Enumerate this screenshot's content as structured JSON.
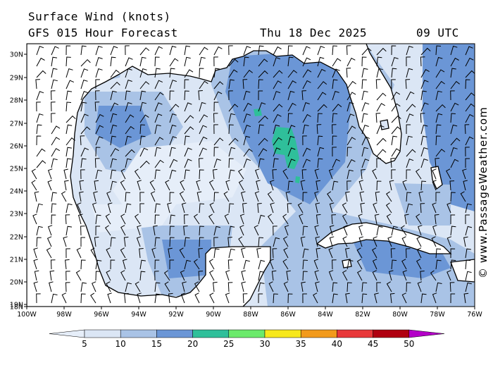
{
  "header": {
    "title": "Surface Wind (knots)",
    "model": "GFS 015 Hour Forecast",
    "date": "Thu 18 Dec 2025",
    "time": "09 UTC"
  },
  "credit": "© www.PassageWeather.com",
  "map": {
    "lat_labels": [
      "30N",
      "29N",
      "28N",
      "27N",
      "26N",
      "25N",
      "24N",
      "23N",
      "22N",
      "21N",
      "20N",
      "19N",
      "18N"
    ],
    "lon_labels": [
      "100W",
      "98W",
      "96W",
      "94W",
      "92W",
      "90W",
      "88W",
      "86W",
      "84W",
      "82W",
      "80W",
      "78W",
      "76W"
    ],
    "lat_range": [
      18,
      30.5
    ],
    "lon_range": [
      -100,
      -76
    ],
    "ocean_color": "#dbe6f5",
    "land_color": "#ffffff"
  },
  "legend": {
    "labels": [
      "5",
      "10",
      "15",
      "20",
      "25",
      "30",
      "35",
      "40",
      "45",
      "50"
    ],
    "colors": [
      "#e6eef9",
      "#dbe6f5",
      "#a9c3e6",
      "#6b96d6",
      "#2fbf9a",
      "#6bea6b",
      "#f7e81c",
      "#f29a1c",
      "#e8383a",
      "#b00010",
      "#b400c8"
    ]
  }
}
